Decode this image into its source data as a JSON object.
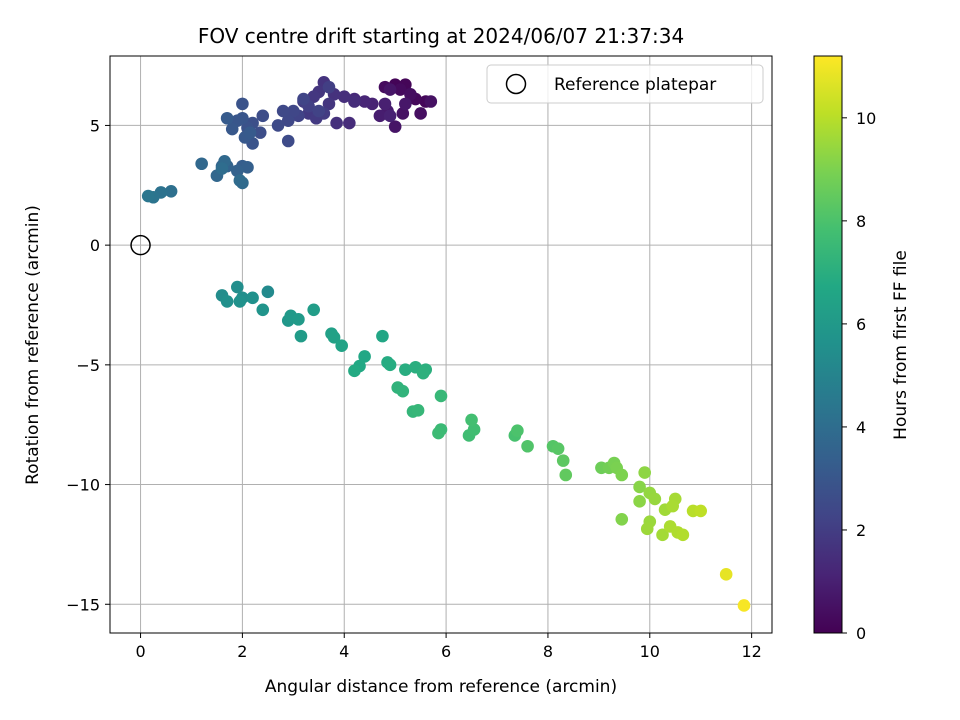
{
  "chart_data": {
    "type": "scatter",
    "title": "FOV centre drift starting at 2024/06/07 21:37:34",
    "xlabel": "Angular distance from reference (arcmin)",
    "ylabel": "Rotation from reference (arcmin)",
    "xlim": [
      -0.6,
      12.4
    ],
    "ylim": [
      -16.2,
      7.9
    ],
    "xticks": [
      0,
      2,
      4,
      6,
      8,
      10,
      12
    ],
    "yticks": [
      -15,
      -10,
      -5,
      0,
      5
    ],
    "ytick_labels": [
      "−15",
      "−10",
      "−5",
      "0",
      "5"
    ],
    "grid": true,
    "colormap": "viridis",
    "colorbar": {
      "label": "Hours from first FF file",
      "range": [
        0,
        11.2
      ],
      "ticks": [
        0,
        2,
        4,
        6,
        8,
        10
      ]
    },
    "legend": {
      "placement": "top-right",
      "entries": [
        "Reference platepar"
      ]
    },
    "reference_point": {
      "x": 0,
      "y": 0
    },
    "points": [
      [
        5.0,
        6.7,
        0.1
      ],
      [
        5.2,
        6.7,
        0.15
      ],
      [
        5.6,
        6.0,
        0.2
      ],
      [
        5.4,
        6.1,
        0.25
      ],
      [
        5.1,
        6.5,
        0.3
      ],
      [
        4.8,
        6.6,
        0.35
      ],
      [
        5.3,
        6.3,
        0.4
      ],
      [
        5.5,
        5.5,
        0.45
      ],
      [
        5.7,
        6.0,
        0.5
      ],
      [
        5.15,
        5.5,
        0.55
      ],
      [
        5.0,
        4.95,
        0.6
      ],
      [
        4.9,
        6.5,
        0.65
      ],
      [
        5.2,
        5.9,
        0.7
      ],
      [
        4.85,
        5.6,
        0.8
      ],
      [
        4.7,
        5.4,
        0.9
      ],
      [
        4.8,
        5.9,
        1.0
      ],
      [
        4.9,
        5.4,
        1.05
      ],
      [
        4.55,
        5.9,
        1.1
      ],
      [
        4.4,
        6.0,
        1.2
      ],
      [
        4.2,
        6.1,
        1.3
      ],
      [
        4.1,
        5.1,
        1.4
      ],
      [
        4.2,
        6.0,
        1.45
      ],
      [
        4.0,
        6.2,
        1.5
      ],
      [
        3.85,
        5.1,
        1.55
      ],
      [
        3.8,
        6.3,
        1.6
      ],
      [
        3.6,
        6.8,
        1.65
      ],
      [
        3.5,
        6.4,
        1.7
      ],
      [
        3.7,
        5.9,
        1.75
      ],
      [
        3.4,
        6.2,
        1.8
      ],
      [
        3.3,
        5.5,
        1.85
      ],
      [
        3.45,
        5.3,
        1.9
      ],
      [
        3.6,
        5.5,
        1.95
      ],
      [
        3.2,
        6.0,
        2.0
      ],
      [
        3.7,
        6.6,
        2.05
      ],
      [
        3.3,
        5.8,
        2.1
      ],
      [
        3.5,
        5.6,
        2.2
      ],
      [
        3.1,
        5.4,
        2.25
      ],
      [
        3.2,
        6.1,
        2.3
      ],
      [
        3.0,
        5.6,
        2.35
      ],
      [
        2.9,
        5.2,
        2.4
      ],
      [
        2.8,
        5.6,
        2.45
      ],
      [
        2.7,
        5.0,
        2.5
      ],
      [
        2.9,
        4.35,
        2.55
      ],
      [
        2.4,
        5.4,
        2.6
      ],
      [
        2.35,
        4.7,
        2.65
      ],
      [
        2.2,
        5.1,
        2.7
      ],
      [
        2.1,
        4.9,
        2.8
      ],
      [
        2.0,
        5.9,
        2.85
      ],
      [
        2.2,
        4.25,
        2.9
      ],
      [
        2.0,
        5.3,
        2.95
      ],
      [
        1.9,
        5.2,
        3.0
      ],
      [
        1.8,
        4.85,
        3.05
      ],
      [
        2.05,
        4.5,
        3.1
      ],
      [
        2.15,
        4.7,
        3.15
      ],
      [
        1.7,
        5.3,
        3.2
      ],
      [
        2.0,
        3.3,
        3.3
      ],
      [
        2.1,
        3.25,
        3.4
      ],
      [
        1.9,
        3.1,
        3.5
      ],
      [
        1.7,
        3.3,
        3.55
      ],
      [
        1.6,
        3.3,
        3.6
      ],
      [
        1.5,
        2.9,
        3.7
      ],
      [
        1.2,
        3.4,
        3.75
      ],
      [
        1.65,
        3.5,
        3.8
      ],
      [
        2.0,
        2.6,
        3.85
      ],
      [
        1.95,
        2.7,
        3.9
      ],
      [
        1.6,
        3.2,
        4.0
      ],
      [
        0.6,
        2.25,
        4.1
      ],
      [
        0.4,
        2.2,
        4.2
      ],
      [
        0.25,
        2.0,
        4.3
      ],
      [
        0.15,
        2.05,
        4.4
      ],
      [
        2.5,
        -1.95,
        5.3
      ],
      [
        1.6,
        -2.1,
        5.4
      ],
      [
        1.9,
        -1.75,
        5.45
      ],
      [
        2.0,
        -2.2,
        5.5
      ],
      [
        1.7,
        -2.35,
        5.55
      ],
      [
        2.2,
        -2.2,
        5.6
      ],
      [
        1.95,
        -2.35,
        5.65
      ],
      [
        2.4,
        -2.7,
        5.75
      ],
      [
        2.9,
        -3.15,
        5.9
      ],
      [
        2.95,
        -2.95,
        6.0
      ],
      [
        3.1,
        -3.1,
        6.05
      ],
      [
        3.15,
        -3.8,
        6.1
      ],
      [
        3.4,
        -2.7,
        6.2
      ],
      [
        3.75,
        -3.7,
        6.35
      ],
      [
        3.8,
        -3.85,
        6.4
      ],
      [
        3.95,
        -4.2,
        6.5
      ],
      [
        4.75,
        -3.8,
        6.6
      ],
      [
        4.4,
        -4.65,
        6.65
      ],
      [
        4.3,
        -5.05,
        6.7
      ],
      [
        4.2,
        -5.25,
        6.8
      ],
      [
        4.85,
        -4.9,
        6.85
      ],
      [
        4.9,
        -5.0,
        6.9
      ],
      [
        5.2,
        -5.2,
        6.95
      ],
      [
        5.4,
        -5.1,
        7.0
      ],
      [
        5.6,
        -5.2,
        7.05
      ],
      [
        5.55,
        -5.35,
        7.1
      ],
      [
        5.05,
        -5.95,
        7.2
      ],
      [
        5.15,
        -6.1,
        7.25
      ],
      [
        5.35,
        -6.95,
        7.35
      ],
      [
        5.45,
        -6.9,
        7.4
      ],
      [
        5.9,
        -6.3,
        7.45
      ],
      [
        5.9,
        -7.7,
        7.55
      ],
      [
        5.85,
        -7.85,
        7.6
      ],
      [
        6.45,
        -7.95,
        7.7
      ],
      [
        6.55,
        -7.7,
        7.75
      ],
      [
        6.5,
        -7.3,
        7.8
      ],
      [
        7.35,
        -7.95,
        7.9
      ],
      [
        7.4,
        -7.75,
        8.0
      ],
      [
        7.6,
        -8.4,
        8.1
      ],
      [
        8.1,
        -8.4,
        8.2
      ],
      [
        8.2,
        -8.5,
        8.25
      ],
      [
        8.3,
        -9.0,
        8.35
      ],
      [
        8.35,
        -9.6,
        8.45
      ],
      [
        9.05,
        -9.3,
        8.7
      ],
      [
        9.2,
        -9.3,
        8.8
      ],
      [
        9.3,
        -9.1,
        8.9
      ],
      [
        9.35,
        -9.3,
        8.95
      ],
      [
        9.45,
        -9.6,
        9.0
      ],
      [
        9.45,
        -11.45,
        9.1
      ],
      [
        9.8,
        -10.1,
        9.2
      ],
      [
        9.8,
        -10.7,
        9.25
      ],
      [
        9.9,
        -9.5,
        9.3
      ],
      [
        10.0,
        -10.35,
        9.4
      ],
      [
        10.1,
        -10.6,
        9.45
      ],
      [
        10.0,
        -11.55,
        9.5
      ],
      [
        9.95,
        -11.85,
        9.55
      ],
      [
        10.3,
        -11.05,
        9.6
      ],
      [
        10.25,
        -12.1,
        9.65
      ],
      [
        10.5,
        -10.6,
        9.7
      ],
      [
        10.45,
        -10.9,
        9.75
      ],
      [
        10.4,
        -11.75,
        9.8
      ],
      [
        10.55,
        -12.0,
        9.85
      ],
      [
        10.65,
        -12.1,
        9.9
      ],
      [
        10.85,
        -11.1,
        10.0
      ],
      [
        11.0,
        -11.1,
        10.1
      ],
      [
        11.5,
        -13.75,
        10.8
      ],
      [
        11.85,
        -15.05,
        11.1
      ]
    ]
  }
}
